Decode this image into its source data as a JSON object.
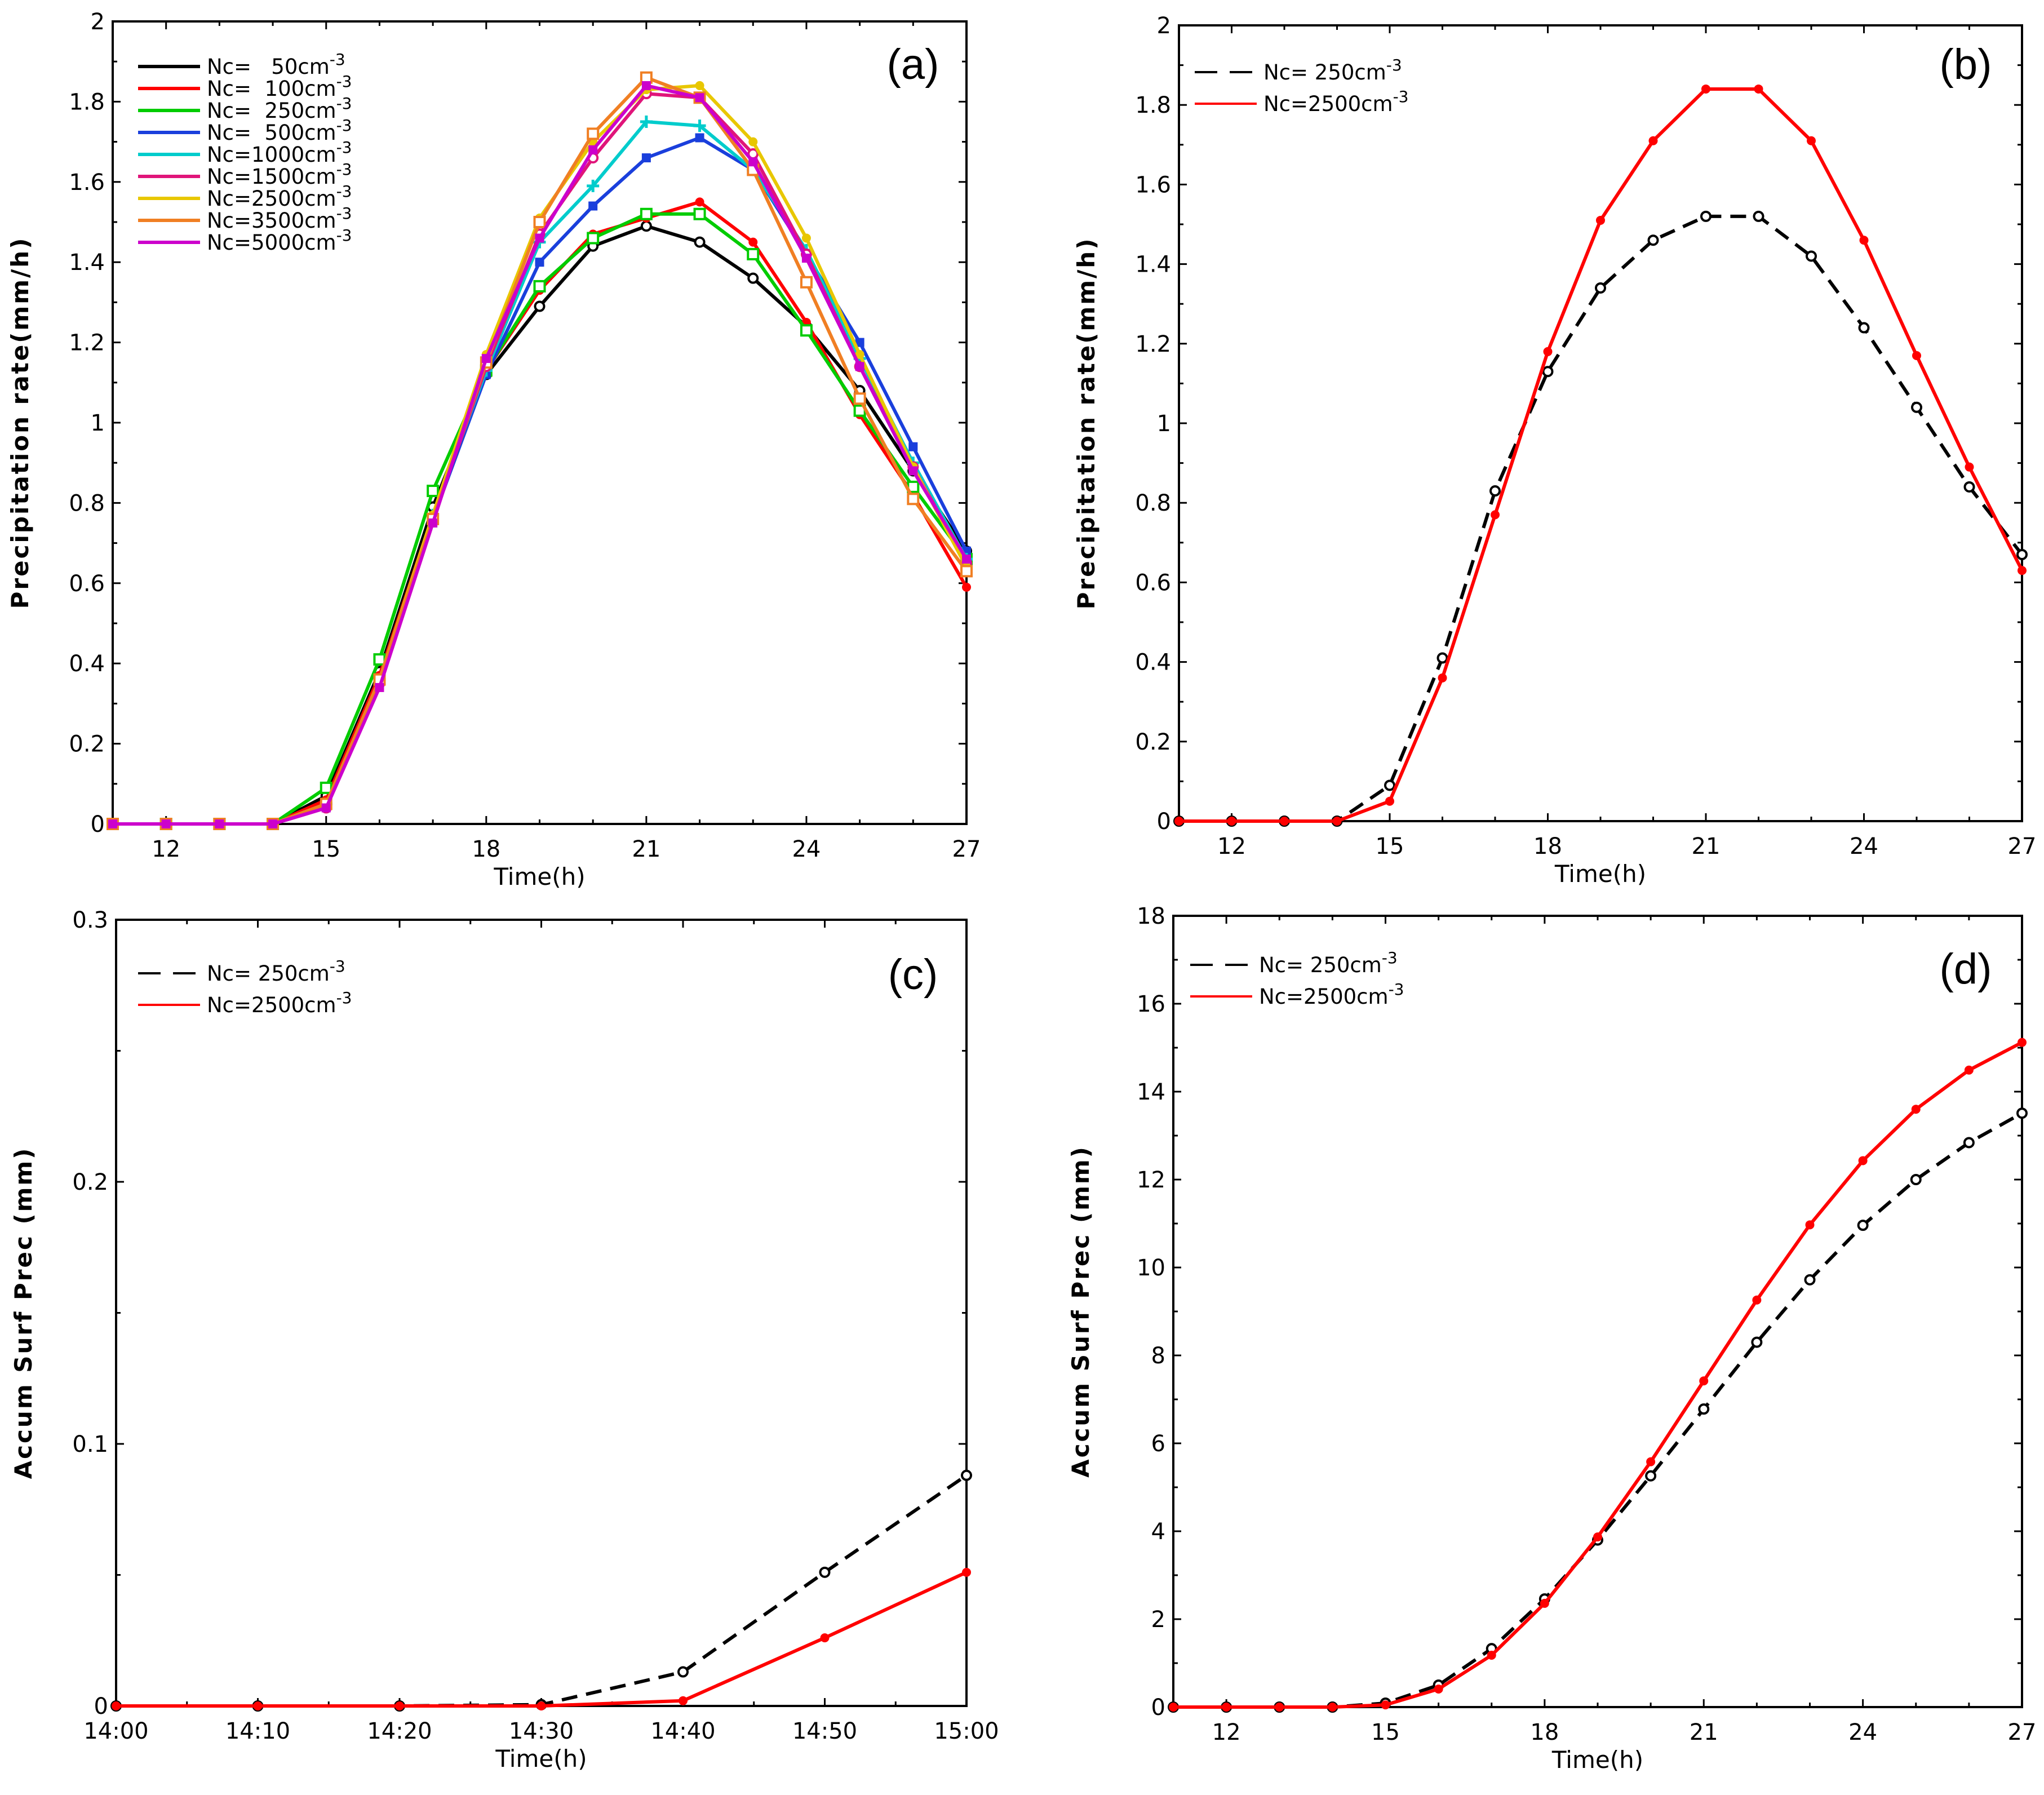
{
  "chart_data": [
    {
      "id": "a",
      "type": "line",
      "panel_label": "(a)",
      "title": "",
      "xlabel": "Time(h)",
      "ylabel": "Precipitation rate(mm/h)",
      "xlim": [
        11,
        27
      ],
      "ylim": [
        0,
        2
      ],
      "xticks": [
        12,
        15,
        18,
        21,
        24,
        27
      ],
      "xtick_labels": [
        "12",
        "15",
        "18",
        "21",
        "24",
        "27"
      ],
      "yticks": [
        0,
        0.2,
        0.4,
        0.6,
        0.8,
        1,
        1.2,
        1.4,
        1.6,
        1.8,
        2
      ],
      "ytick_labels": [
        "0",
        "0.2",
        "0.4",
        "0.6",
        "0.8",
        "1",
        "1.2",
        "1.4",
        "1.6",
        "1.8",
        "2"
      ],
      "legend_position": "top-left",
      "x": [
        11,
        12,
        13,
        14,
        15,
        16,
        17,
        18,
        19,
        20,
        21,
        22,
        23,
        24,
        25,
        26,
        27
      ],
      "series": [
        {
          "name": "Nc=   50cm",
          "sup": "-3",
          "color": "#000000",
          "marker": "circle",
          "dash": "",
          "values": [
            0,
            0,
            0,
            0,
            0.07,
            0.38,
            0.79,
            1.12,
            1.29,
            1.44,
            1.49,
            1.45,
            1.36,
            1.24,
            1.08,
            0.88,
            0.68
          ]
        },
        {
          "name": "Nc=  100cm",
          "sup": "-3",
          "color": "#ff0000",
          "marker": "dot",
          "dash": "",
          "values": [
            0,
            0,
            0,
            0,
            0.06,
            0.37,
            0.77,
            1.13,
            1.33,
            1.47,
            1.51,
            1.55,
            1.45,
            1.25,
            1.02,
            0.82,
            0.59
          ]
        },
        {
          "name": "Nc=  250cm",
          "sup": "-3",
          "color": "#00cc00",
          "marker": "square",
          "dash": "",
          "values": [
            0,
            0,
            0,
            0,
            0.09,
            0.41,
            0.83,
            1.13,
            1.34,
            1.46,
            1.52,
            1.52,
            1.42,
            1.23,
            1.03,
            0.84,
            0.66
          ]
        },
        {
          "name": "Nc=  500cm",
          "sup": "-3",
          "color": "#1a3fdc",
          "marker": "square-filled",
          "dash": "",
          "values": [
            0,
            0,
            0,
            0,
            0.05,
            0.36,
            0.76,
            1.12,
            1.4,
            1.54,
            1.66,
            1.71,
            1.63,
            1.42,
            1.2,
            0.94,
            0.68
          ]
        },
        {
          "name": "Nc=1000cm",
          "sup": "-3",
          "color": "#00cccc",
          "marker": "plus",
          "dash": "",
          "values": [
            0,
            0,
            0,
            0,
            0.05,
            0.36,
            0.77,
            1.13,
            1.45,
            1.59,
            1.75,
            1.74,
            1.63,
            1.43,
            1.16,
            0.9,
            0.66
          ]
        },
        {
          "name": "Nc=1500cm",
          "sup": "-3",
          "color": "#e0157a",
          "marker": "circle",
          "dash": "",
          "values": [
            0,
            0,
            0,
            0,
            0.04,
            0.35,
            0.76,
            1.14,
            1.47,
            1.66,
            1.82,
            1.81,
            1.67,
            1.42,
            1.14,
            0.89,
            0.65
          ]
        },
        {
          "name": "Nc=2500cm",
          "sup": "-3",
          "color": "#e8c700",
          "marker": "dot",
          "dash": "",
          "values": [
            0,
            0,
            0,
            0,
            0.05,
            0.36,
            0.77,
            1.17,
            1.51,
            1.7,
            1.83,
            1.84,
            1.7,
            1.46,
            1.17,
            0.89,
            0.64
          ]
        },
        {
          "name": "Nc=3500cm",
          "sup": "-3",
          "color": "#f07f23",
          "marker": "square",
          "dash": "",
          "values": [
            0,
            0,
            0,
            0,
            0.05,
            0.36,
            0.76,
            1.15,
            1.5,
            1.72,
            1.86,
            1.81,
            1.63,
            1.35,
            1.06,
            0.81,
            0.63
          ]
        },
        {
          "name": "Nc=5000cm",
          "sup": "-3",
          "color": "#cc00cc",
          "marker": "square-filled",
          "dash": "",
          "values": [
            0,
            0,
            0,
            0,
            0.04,
            0.34,
            0.75,
            1.16,
            1.46,
            1.68,
            1.84,
            1.81,
            1.65,
            1.41,
            1.14,
            0.88,
            0.66
          ]
        }
      ]
    },
    {
      "id": "b",
      "type": "line",
      "panel_label": "(b)",
      "title": "",
      "xlabel": "Time(h)",
      "ylabel": "Precipitation rate(mm/h)",
      "xlim": [
        11,
        27
      ],
      "ylim": [
        0,
        2
      ],
      "xticks": [
        12,
        15,
        18,
        21,
        24,
        27
      ],
      "xtick_labels": [
        "12",
        "15",
        "18",
        "21",
        "24",
        "27"
      ],
      "yticks": [
        0,
        0.2,
        0.4,
        0.6,
        0.8,
        1,
        1.2,
        1.4,
        1.6,
        1.8,
        2
      ],
      "ytick_labels": [
        "0",
        "0.2",
        "0.4",
        "0.6",
        "0.8",
        "1",
        "1.2",
        "1.4",
        "1.6",
        "1.8",
        "2"
      ],
      "legend_position": "top-left",
      "x": [
        11,
        12,
        13,
        14,
        15,
        16,
        17,
        18,
        19,
        20,
        21,
        22,
        23,
        24,
        25,
        26,
        27
      ],
      "series": [
        {
          "name": "Nc= 250cm",
          "sup": "-3",
          "color": "#000000",
          "marker": "circle",
          "dash": "28 16",
          "values": [
            0,
            0,
            0,
            0,
            0.09,
            0.41,
            0.83,
            1.13,
            1.34,
            1.46,
            1.52,
            1.52,
            1.42,
            1.24,
            1.04,
            0.84,
            0.67
          ]
        },
        {
          "name": "Nc=2500cm",
          "sup": "-3",
          "color": "#ff0000",
          "marker": "dot",
          "dash": "",
          "values": [
            0,
            0,
            0,
            0,
            0.05,
            0.36,
            0.77,
            1.18,
            1.51,
            1.71,
            1.84,
            1.84,
            1.71,
            1.46,
            1.17,
            0.89,
            0.63
          ]
        }
      ]
    },
    {
      "id": "c",
      "type": "line",
      "panel_label": "(c)",
      "title": "",
      "xlabel": "Time(h)",
      "ylabel": "Accum Surf Prec (mm)",
      "xlim": [
        0,
        60
      ],
      "ylim": [
        0,
        0.3
      ],
      "xticks": [
        0,
        10,
        20,
        30,
        40,
        50,
        60
      ],
      "xtick_labels": [
        "14:00",
        "14:10",
        "14:20",
        "14:30",
        "14:40",
        "14:50",
        "15:00"
      ],
      "yticks": [
        0,
        0.1,
        0.2,
        0.3
      ],
      "ytick_labels": [
        "0",
        "0.1",
        "0.2",
        "0.3"
      ],
      "legend_position": "top-left",
      "x": [
        0,
        10,
        20,
        30,
        40,
        50,
        60
      ],
      "series": [
        {
          "name": "Nc= 250cm",
          "sup": "-3",
          "color": "#000000",
          "marker": "circle",
          "dash": "28 16",
          "values": [
            0,
            0,
            0,
            0.0005,
            0.013,
            0.051,
            0.088
          ]
        },
        {
          "name": "Nc=2500cm",
          "sup": "-3",
          "color": "#ff0000",
          "marker": "dot",
          "dash": "",
          "values": [
            0,
            0,
            0,
            0,
            0.002,
            0.026,
            0.051
          ]
        }
      ]
    },
    {
      "id": "d",
      "type": "line",
      "panel_label": "(d)",
      "title": "",
      "xlabel": "Time(h)",
      "ylabel": "Accum Surf Prec (mm)",
      "xlim": [
        11,
        27
      ],
      "ylim": [
        0,
        18
      ],
      "xticks": [
        12,
        15,
        18,
        21,
        24,
        27
      ],
      "xtick_labels": [
        "12",
        "15",
        "18",
        "21",
        "24",
        "27"
      ],
      "yticks": [
        0,
        2,
        4,
        6,
        8,
        10,
        12,
        14,
        16,
        18
      ],
      "ytick_labels": [
        "0",
        "2",
        "4",
        "6",
        "8",
        "10",
        "12",
        "14",
        "16",
        "18"
      ],
      "legend_position": "top-left",
      "x": [
        11,
        12,
        13,
        14,
        15,
        16,
        17,
        18,
        19,
        20,
        21,
        22,
        23,
        24,
        25,
        26,
        27
      ],
      "series": [
        {
          "name": "Nc= 250cm",
          "sup": "-3",
          "color": "#000000",
          "marker": "circle",
          "dash": "28 16",
          "values": [
            0,
            0,
            0,
            0,
            0.09,
            0.5,
            1.33,
            2.46,
            3.8,
            5.26,
            6.78,
            8.3,
            9.72,
            10.96,
            12.0,
            12.84,
            13.51
          ]
        },
        {
          "name": "Nc=2500cm",
          "sup": "-3",
          "color": "#ff0000",
          "marker": "dot",
          "dash": "",
          "values": [
            0,
            0,
            0,
            0,
            0.05,
            0.41,
            1.18,
            2.36,
            3.87,
            5.58,
            7.42,
            9.26,
            10.97,
            12.43,
            13.6,
            14.49,
            15.12
          ]
        }
      ]
    }
  ]
}
